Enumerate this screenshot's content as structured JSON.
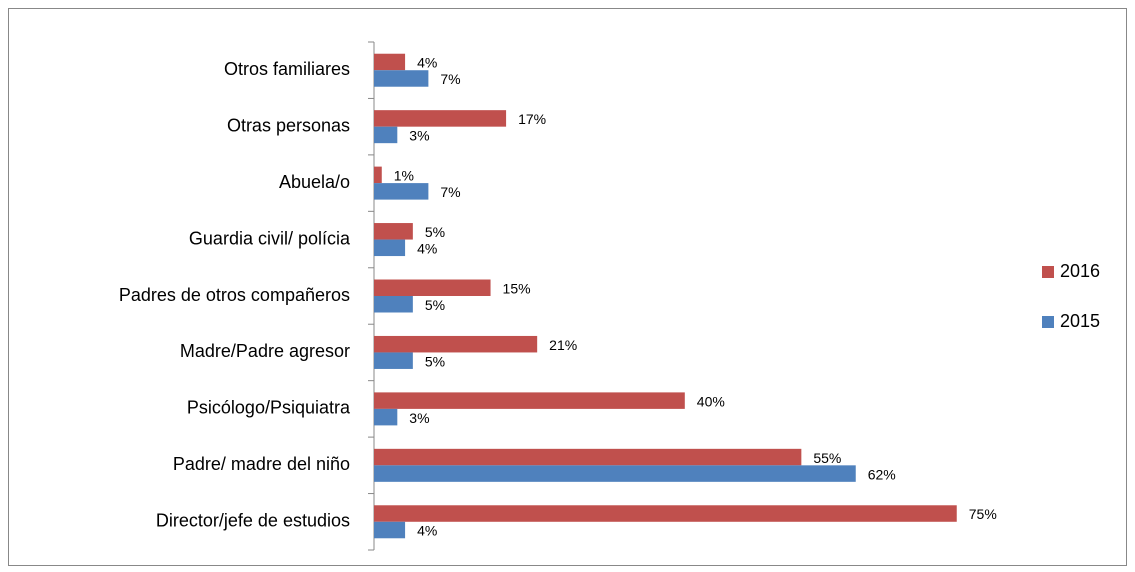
{
  "chart_data": {
    "type": "hbar",
    "categories": [
      "Otros familiares",
      "Otras personas",
      "Abuela/o",
      "Guardia civil/ polícia",
      "Padres de otros compañeros",
      "Madre/Padre agresor",
      "Psicólogo/Psiquiatra",
      "Padre/ madre del niño",
      "Director/jefe de estudios"
    ],
    "series": [
      {
        "name": "2016",
        "color": "#c0504d",
        "values": [
          4,
          17,
          1,
          5,
          15,
          21,
          40,
          55,
          75
        ],
        "value_labels": [
          "4%",
          "17%",
          "1%",
          "5%",
          "15%",
          "21%",
          "40%",
          "55%",
          "75%"
        ]
      },
      {
        "name": "2015",
        "color": "#4f81bd",
        "values": [
          7,
          3,
          7,
          4,
          5,
          5,
          3,
          62,
          4
        ],
        "value_labels": [
          "7%",
          "3%",
          "7%",
          "4%",
          "5%",
          "5%",
          "3%",
          "62%",
          "4%"
        ]
      }
    ],
    "legend": "right"
  }
}
